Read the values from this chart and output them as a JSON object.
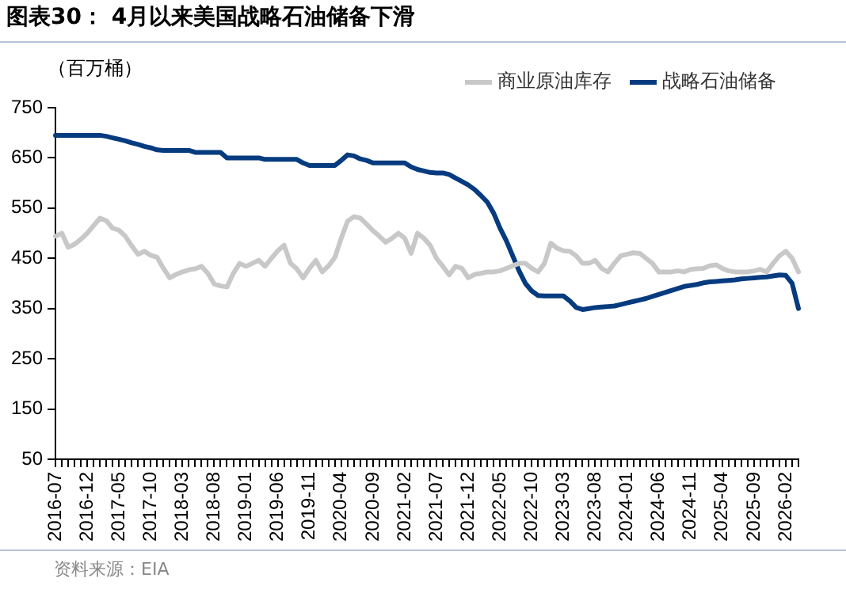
{
  "chart_data": {
    "type": "line",
    "title": "图表30： 4月以来美国战略石油储备下滑",
    "ylabel": "（百万桶）",
    "annotations": [
      "资料来源：EIA"
    ],
    "categories": [
      "2016-07",
      null,
      null,
      null,
      null,
      "2016-12",
      null,
      null,
      null,
      null,
      "2017-05",
      null,
      null,
      null,
      null,
      "2017-10",
      null,
      null,
      null,
      null,
      "2018-03",
      null,
      null,
      null,
      null,
      "2018-08",
      null,
      null,
      null,
      null,
      "2019-01",
      null,
      null,
      null,
      null,
      "2019-06",
      null,
      null,
      null,
      null,
      "2019-11",
      null,
      null,
      null,
      null,
      "2020-04",
      null,
      null,
      null,
      null,
      "2020-09",
      null,
      null,
      null,
      null,
      "2021-02",
      null,
      null,
      null,
      null,
      "2021-07",
      null,
      null,
      null,
      null,
      "2021-12",
      null,
      null,
      null,
      null,
      "2022-05",
      null,
      null,
      null,
      null,
      "2022-10",
      null,
      null,
      null,
      null,
      "2023-03",
      null,
      null,
      null,
      null,
      "2023-08",
      null,
      null,
      null,
      null,
      "2024-01",
      null,
      null,
      null,
      null,
      "2024-06",
      null,
      null,
      null,
      null,
      "2024-11",
      null,
      null,
      null,
      null,
      "2025-04",
      null,
      null,
      null,
      null,
      "2025-09",
      null,
      null,
      null,
      null,
      "2026-02",
      null,
      null
    ],
    "series": [
      {
        "name": "商业原油库存",
        "color": "#c8c8c8",
        "values": [
          494,
          500,
          472,
          478,
          488,
          500,
          515,
          530,
          525,
          510,
          506,
          494,
          475,
          458,
          464,
          456,
          452,
          430,
          411,
          418,
          423,
          427,
          429,
          434,
          420,
          399,
          395,
          393,
          420,
          440,
          434,
          440,
          446,
          434,
          450,
          465,
          476,
          440,
          429,
          411,
          430,
          446,
          423,
          435,
          452,
          490,
          524,
          533,
          530,
          518,
          505,
          494,
          482,
          490,
          500,
          490,
          460,
          500,
          490,
          476,
          450,
          434,
          417,
          434,
          430,
          411,
          418,
          420,
          423,
          423,
          425,
          430,
          435,
          440,
          440,
          430,
          423,
          440,
          480,
          470,
          465,
          464,
          455,
          440,
          440,
          446,
          430,
          423,
          440,
          455,
          458,
          461,
          460,
          450,
          440,
          423,
          423,
          423,
          425,
          423,
          428,
          429,
          430,
          435,
          437,
          430,
          425,
          423,
          423,
          423,
          425,
          428,
          423,
          440,
          455,
          464,
          450,
          423
        ]
      },
      {
        "name": "战略石油储备",
        "color": "#063b7f",
        "values": [
          695,
          695,
          695,
          695,
          695,
          695,
          695,
          695,
          693,
          690,
          687,
          684,
          680,
          677,
          673,
          670,
          666,
          665,
          665,
          665,
          665,
          665,
          661,
          661,
          661,
          661,
          661,
          650,
          650,
          650,
          650,
          650,
          650,
          647,
          647,
          647,
          647,
          647,
          647,
          640,
          635,
          635,
          635,
          635,
          635,
          645,
          656,
          654,
          648,
          645,
          640,
          640,
          640,
          640,
          640,
          640,
          632,
          627,
          624,
          621,
          620,
          620,
          617,
          610,
          603,
          596,
          587,
          575,
          562,
          540,
          510,
          485,
          455,
          425,
          400,
          385,
          376,
          375,
          375,
          375,
          375,
          365,
          352,
          348,
          350,
          352,
          353,
          354,
          355,
          358,
          361,
          364,
          367,
          370,
          374,
          378,
          382,
          386,
          390,
          394,
          396,
          398,
          401,
          403,
          404,
          405,
          406,
          407,
          409,
          410,
          411,
          412,
          413,
          415,
          417,
          416,
          400,
          350
        ]
      }
    ],
    "ylim": [
      50,
      750
    ],
    "yticks": [
      50,
      150,
      250,
      350,
      450,
      550,
      650,
      750
    ],
    "grid": false,
    "legend": "top right",
    "marker": "none",
    "line_style": "solid"
  }
}
